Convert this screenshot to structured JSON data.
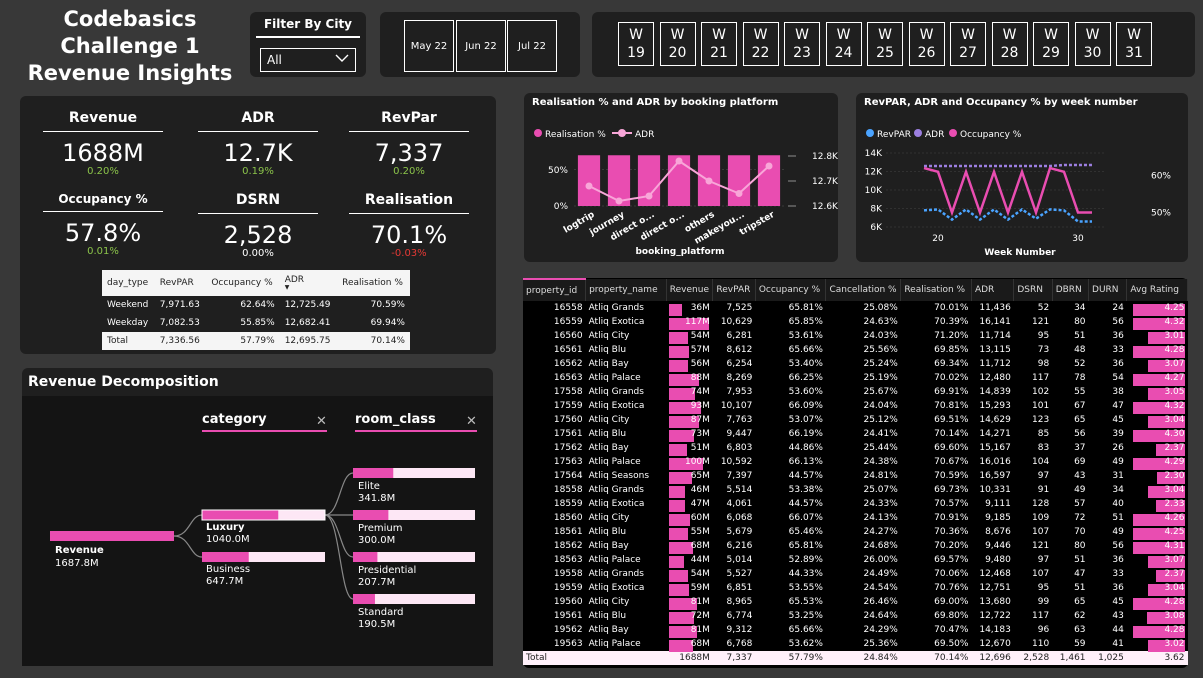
{
  "title": [
    "Codebasics",
    "Challenge 1",
    "Revenue Insights"
  ],
  "filter": {
    "label": "Filter By City",
    "selected": "All"
  },
  "months": [
    "May 22",
    "Jun 22",
    "Jul 22"
  ],
  "weeks": [
    "19",
    "20",
    "21",
    "22",
    "23",
    "24",
    "25",
    "26",
    "27",
    "28",
    "29",
    "30",
    "31"
  ],
  "week_prefix": "W",
  "kpis": [
    {
      "label": "Revenue",
      "value": "1688M",
      "change": "0.20%",
      "dir": "up"
    },
    {
      "label": "ADR",
      "value": "12.7K",
      "change": "0.19%",
      "dir": "up"
    },
    {
      "label": "RevPar",
      "value": "7,337",
      "change": "0.20%",
      "dir": "up"
    },
    {
      "label": "Occupancy %",
      "value": "57.8%",
      "change": "0.01%",
      "dir": "up"
    },
    {
      "label": "DSRN",
      "value": "2,528",
      "change": "0.00%",
      "dir": "flat"
    },
    {
      "label": "Realisation",
      "value": "70.1%",
      "change": "-0.03%",
      "dir": "down"
    }
  ],
  "day_table": {
    "headers": [
      "day_type",
      "RevPAR",
      "Occupancy %",
      "ADR",
      "Realisation %"
    ],
    "rows": [
      [
        "Weekend",
        "7,971.63",
        "62.64%",
        "12,725.49",
        "70.59%"
      ],
      [
        "Weekday",
        "7,082.53",
        "55.85%",
        "12,682.41",
        "69.94%"
      ]
    ],
    "total": [
      "Total",
      "7,336.56",
      "57.79%",
      "12,695.75",
      "70.14%"
    ]
  },
  "decomp": {
    "title": "Revenue Decomposition",
    "col1": "category",
    "col2": "room_class",
    "root": {
      "label": "Revenue",
      "value": "1687.8M"
    },
    "categories": [
      {
        "label": "Luxury",
        "value": "1040.0M",
        "frac": 0.62
      },
      {
        "label": "Business",
        "value": "647.7M",
        "frac": 0.38
      }
    ],
    "room_classes": [
      {
        "label": "Elite",
        "value": "341.8M",
        "frac": 0.33
      },
      {
        "label": "Premium",
        "value": "300.0M",
        "frac": 0.29
      },
      {
        "label": "Presidential",
        "value": "207.7M",
        "frac": 0.2
      },
      {
        "label": "Standard",
        "value": "190.5M",
        "frac": 0.18
      }
    ]
  },
  "chart_data": [
    {
      "type": "bar",
      "title": "Realisation % and ADR by booking platform",
      "xlabel": "booking_platform",
      "categories": [
        "logtrip",
        "journey",
        "direct o...",
        "direct o...",
        "others",
        "makeyou...",
        "tripster"
      ],
      "series": [
        {
          "name": "Realisation %",
          "values": [
            70,
            70,
            70,
            70,
            70,
            70,
            70
          ]
        },
        {
          "name": "ADR",
          "values": [
            12.68,
            12.62,
            12.64,
            12.78,
            12.7,
            12.65,
            12.76
          ]
        }
      ],
      "y_ticks": [
        "0%",
        "50%"
      ],
      "y2_ticks": [
        "12.6K",
        "12.7K",
        "12.8K"
      ],
      "ylim": [
        0,
        80
      ],
      "y2lim": [
        12.6,
        12.8
      ]
    },
    {
      "type": "line",
      "title": "RevPAR, ADR and Occupancy % by week number",
      "xlabel": "Week Number",
      "x": [
        19,
        20,
        21,
        22,
        23,
        24,
        25,
        26,
        27,
        28,
        29,
        30,
        31
      ],
      "series": [
        {
          "name": "RevPAR",
          "values": [
            7800,
            7900,
            6800,
            7900,
            6800,
            7900,
            6800,
            7900,
            6900,
            7900,
            7800,
            6600,
            6600
          ]
        },
        {
          "name": "ADR",
          "values": [
            12600,
            12600,
            12600,
            12600,
            12600,
            12600,
            12600,
            12600,
            12600,
            12600,
            12700,
            12700,
            12700
          ]
        },
        {
          "name": "Occupancy %",
          "values": [
            62,
            61,
            50,
            61,
            50,
            61,
            50,
            61,
            50,
            62,
            61,
            50,
            50
          ]
        }
      ],
      "y_ticks": [
        "6K",
        "8K",
        "10K",
        "12K",
        "14K"
      ],
      "y2_ticks": [
        "50%",
        "60%"
      ],
      "x_ticks": [
        "20",
        "30"
      ],
      "ylim": [
        6000,
        14000
      ],
      "y2lim": [
        45,
        65
      ]
    }
  ],
  "legend_labels": {
    "platform": [
      "Realisation %",
      "ADR"
    ],
    "week": [
      "RevPAR",
      "ADR",
      "Occupancy %"
    ]
  },
  "colors": {
    "pink": "#e94db1",
    "blue": "#4aa3ff",
    "purple": "#9c7fe0",
    "bg": "#383838"
  },
  "property_table": {
    "headers": [
      "property_id",
      "property_name",
      "Revenue",
      "RevPAR",
      "Occupancy %",
      "Cancellation %",
      "Realisation %",
      "ADR",
      "DSRN",
      "DBRN",
      "DURN",
      "Avg Rating"
    ],
    "rows": [
      [
        "16558",
        "Atliq Grands",
        "36M",
        "7,525",
        "65.81%",
        "25.08%",
        "70.01%",
        "11,436",
        "52",
        "34",
        "24",
        "4.25",
        36,
        4.25
      ],
      [
        "16559",
        "Atliq Exotica",
        "117M",
        "10,629",
        "65.85%",
        "24.63%",
        "70.39%",
        "16,141",
        "121",
        "80",
        "56",
        "4.32",
        117,
        4.32
      ],
      [
        "16560",
        "Atliq City",
        "54M",
        "6,281",
        "53.61%",
        "24.03%",
        "71.20%",
        "11,714",
        "95",
        "51",
        "36",
        "3.01",
        54,
        3.01
      ],
      [
        "16561",
        "Atliq Blu",
        "57M",
        "8,612",
        "65.66%",
        "25.56%",
        "69.85%",
        "13,115",
        "73",
        "48",
        "33",
        "4.28",
        57,
        4.28
      ],
      [
        "16562",
        "Atliq Bay",
        "56M",
        "6,254",
        "53.40%",
        "25.24%",
        "69.34%",
        "11,712",
        "98",
        "52",
        "36",
        "3.07",
        56,
        3.07
      ],
      [
        "16563",
        "Atliq Palace",
        "88M",
        "8,269",
        "66.25%",
        "25.19%",
        "70.02%",
        "12,480",
        "117",
        "78",
        "54",
        "4.27",
        88,
        4.27
      ],
      [
        "17558",
        "Atliq Grands",
        "74M",
        "7,953",
        "53.60%",
        "25.67%",
        "69.91%",
        "14,839",
        "102",
        "55",
        "38",
        "3.05",
        74,
        3.05
      ],
      [
        "17559",
        "Atliq Exotica",
        "93M",
        "10,107",
        "66.09%",
        "24.04%",
        "70.81%",
        "15,293",
        "101",
        "67",
        "47",
        "4.32",
        93,
        4.32
      ],
      [
        "17560",
        "Atliq City",
        "87M",
        "7,763",
        "53.07%",
        "25.12%",
        "69.51%",
        "14,629",
        "123",
        "65",
        "45",
        "3.04",
        87,
        3.04
      ],
      [
        "17561",
        "Atliq Blu",
        "73M",
        "9,447",
        "66.19%",
        "24.41%",
        "70.14%",
        "14,271",
        "85",
        "56",
        "39",
        "4.30",
        73,
        4.3
      ],
      [
        "17562",
        "Atliq Bay",
        "51M",
        "6,803",
        "44.86%",
        "25.44%",
        "69.60%",
        "15,167",
        "83",
        "37",
        "26",
        "2.37",
        51,
        2.37
      ],
      [
        "17563",
        "Atliq Palace",
        "100M",
        "10,592",
        "66.13%",
        "24.38%",
        "70.67%",
        "16,016",
        "104",
        "69",
        "49",
        "4.29",
        100,
        4.29
      ],
      [
        "17564",
        "Atliq Seasons",
        "65M",
        "7,397",
        "44.57%",
        "24.81%",
        "70.59%",
        "16,597",
        "97",
        "43",
        "31",
        "2.30",
        65,
        2.3
      ],
      [
        "18558",
        "Atliq Grands",
        "46M",
        "5,514",
        "53.38%",
        "25.07%",
        "69.73%",
        "10,331",
        "91",
        "49",
        "34",
        "3.04",
        46,
        3.04
      ],
      [
        "18559",
        "Atliq Exotica",
        "47M",
        "4,061",
        "44.57%",
        "24.33%",
        "70.57%",
        "9,111",
        "128",
        "57",
        "40",
        "2.33",
        47,
        2.33
      ],
      [
        "18560",
        "Atliq City",
        "60M",
        "6,068",
        "66.07%",
        "24.13%",
        "70.91%",
        "9,185",
        "109",
        "72",
        "51",
        "4.26",
        60,
        4.26
      ],
      [
        "18561",
        "Atliq Blu",
        "55M",
        "5,679",
        "65.46%",
        "24.27%",
        "70.36%",
        "8,676",
        "107",
        "70",
        "49",
        "4.25",
        55,
        4.25
      ],
      [
        "18562",
        "Atliq Bay",
        "68M",
        "6,216",
        "65.81%",
        "24.68%",
        "70.20%",
        "9,446",
        "121",
        "80",
        "56",
        "4.31",
        68,
        4.31
      ],
      [
        "18563",
        "Atliq Palace",
        "44M",
        "5,014",
        "52.89%",
        "26.00%",
        "69.57%",
        "9,480",
        "97",
        "51",
        "36",
        "3.07",
        44,
        3.07
      ],
      [
        "19558",
        "Atliq Grands",
        "54M",
        "5,527",
        "44.33%",
        "24.49%",
        "70.06%",
        "12,468",
        "107",
        "47",
        "33",
        "2.37",
        54,
        2.37
      ],
      [
        "19559",
        "Atliq Exotica",
        "59M",
        "6,851",
        "53.55%",
        "24.54%",
        "70.76%",
        "12,751",
        "95",
        "51",
        "36",
        "3.04",
        59,
        3.04
      ],
      [
        "19560",
        "Atliq City",
        "81M",
        "8,965",
        "65.53%",
        "26.46%",
        "69.00%",
        "13,680",
        "99",
        "65",
        "45",
        "4.28",
        81,
        4.28
      ],
      [
        "19561",
        "Atliq Blu",
        "72M",
        "6,774",
        "53.25%",
        "24.64%",
        "69.80%",
        "12,722",
        "117",
        "62",
        "43",
        "3.08",
        72,
        3.08
      ],
      [
        "19562",
        "Atliq Bay",
        "81M",
        "9,312",
        "65.66%",
        "24.29%",
        "70.47%",
        "14,183",
        "96",
        "63",
        "44",
        "4.28",
        81,
        4.28
      ],
      [
        "19563",
        "Atliq Palace",
        "68M",
        "6,768",
        "53.62%",
        "25.36%",
        "69.50%",
        "12,670",
        "110",
        "59",
        "41",
        "3.02",
        68,
        3.02
      ]
    ],
    "total": [
      "Total",
      "",
      "1688M",
      "7,337",
      "57.79%",
      "24.84%",
      "70.14%",
      "12,696",
      "2,528",
      "1,461",
      "1,025",
      "3.62"
    ]
  }
}
